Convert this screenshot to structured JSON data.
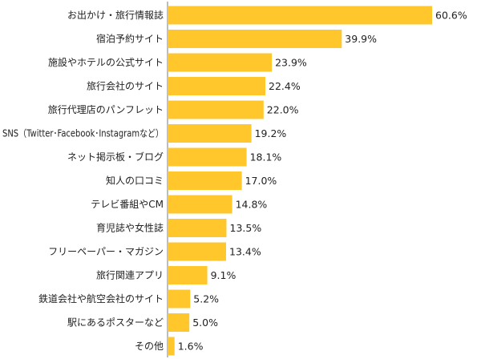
{
  "chart_data": {
    "type": "bar",
    "orientation": "horizontal",
    "title": "",
    "xlabel": "",
    "ylabel": "",
    "xlim": [
      0,
      60.6
    ],
    "bar_color": "#ffc72c",
    "grid": false,
    "legend": "none",
    "categories": [
      "お出かけ・旅行情報誌",
      "宿泊予約サイト",
      "施設やホテルの公式サイト",
      "旅行会社のサイト",
      "旅行代理店のパンフレット",
      "SNS（Twitter･Facebook･Instagramなど）",
      "ネット掲示板・ブログ",
      "知人の口コミ",
      "テレビ番組やCM",
      "育児誌や女性誌",
      "フリーペーパー・マガジン",
      "旅行関連アプリ",
      "鉄道会社や航空会社のサイト",
      "駅にあるポスターなど",
      "その他"
    ],
    "values": [
      60.6,
      39.9,
      23.9,
      22.4,
      22.0,
      19.2,
      18.1,
      17.0,
      14.8,
      13.5,
      13.4,
      9.1,
      5.2,
      5.0,
      1.6
    ],
    "value_labels": [
      "60.6%",
      "39.9%",
      "23.9%",
      "22.4%",
      "22.0%",
      "19.2%",
      "18.1%",
      "17.0%",
      "14.8%",
      "13.5%",
      "13.4%",
      "9.1%",
      "5.2%",
      "5.0%",
      "1.6%"
    ]
  }
}
